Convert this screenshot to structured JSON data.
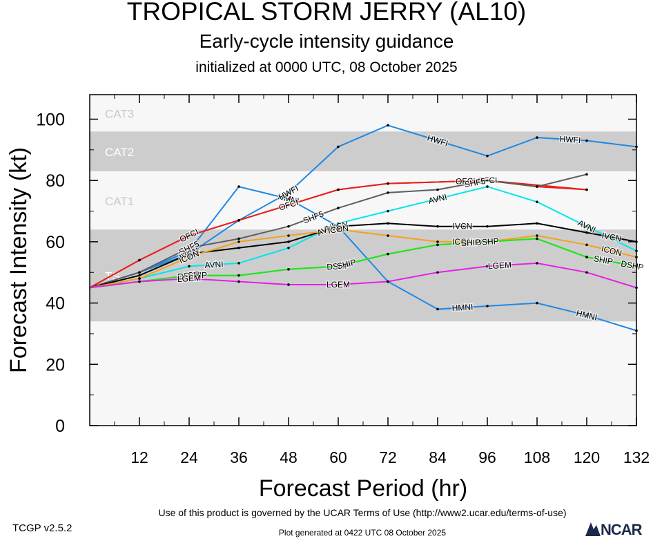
{
  "header": {
    "title": "TROPICAL STORM JERRY (AL10)",
    "subtitle": "Early-cycle intensity guidance",
    "init": "initialized at 0000 UTC, 08 October 2025"
  },
  "footer": {
    "terms": "Use of this product is governed by the UCAR Terms of Use (http://www2.ucar.edu/terms-of-use)",
    "generated": "Plot generated at 0422 UTC   08 October 2025",
    "version": "TCGP v2.5.2",
    "logo_text": "NCAR"
  },
  "chart_data": {
    "type": "line",
    "xlabel": "Forecast Period (hr)",
    "ylabel": "Forecast Intensity (kt)",
    "xlim": [
      0,
      132
    ],
    "ylim": [
      0,
      108
    ],
    "xticks": [
      12,
      24,
      36,
      48,
      60,
      72,
      84,
      96,
      108,
      120,
      132
    ],
    "yticks": [
      0,
      20,
      40,
      60,
      80,
      100
    ],
    "bands": [
      {
        "label": "",
        "from": 0,
        "to": 34,
        "color": "#f7f7f7"
      },
      {
        "label": "TS",
        "from": 34,
        "to": 64,
        "color": "#cdcdcd"
      },
      {
        "label": "CAT1",
        "from": 64,
        "to": 83,
        "color": "#f7f7f7"
      },
      {
        "label": "CAT2",
        "from": 83,
        "to": 96,
        "color": "#cdcdcd"
      },
      {
        "label": "CAT3",
        "from": 96,
        "to": 108,
        "color": "#f7f7f7"
      }
    ],
    "series": [
      {
        "name": "HMNI",
        "color": "#1e88e5",
        "x": [
          0,
          12,
          24,
          36,
          48,
          60,
          72,
          84,
          96,
          108,
          120,
          132
        ],
        "y": [
          45,
          50,
          57,
          78,
          74,
          65,
          47,
          38,
          39,
          40,
          36,
          31
        ],
        "labels_at": [
          24,
          48,
          90,
          120
        ]
      },
      {
        "name": "HWFI",
        "color": "#1e88e5",
        "x": [
          0,
          12,
          24,
          36,
          48,
          60,
          72,
          84,
          96,
          108,
          120,
          132
        ],
        "y": [
          45,
          50,
          56,
          67,
          76,
          91,
          98,
          93,
          88,
          94,
          93,
          91
        ],
        "labels_at": [
          24,
          48,
          84,
          116
        ]
      },
      {
        "name": "OFCI",
        "color": "#e8211c",
        "x": [
          0,
          12,
          24,
          36,
          48,
          60,
          72,
          96,
          120
        ],
        "y": [
          45,
          54,
          62,
          67,
          72,
          77,
          79,
          80,
          77
        ],
        "labels_at": [
          24,
          48,
          96
        ]
      },
      {
        "name": "OFCL",
        "color": "#e8211c",
        "x": [
          0,
          12,
          24,
          36,
          48,
          60,
          72,
          96,
          108,
          120
        ],
        "y": [
          45,
          54,
          62,
          67,
          72,
          77,
          79,
          80,
          78,
          77
        ],
        "labels_at": [
          91
        ]
      },
      {
        "name": "SHF5",
        "color": "#5e5e5e",
        "x": [
          0,
          12,
          24,
          36,
          48,
          60,
          72,
          84,
          96,
          108,
          120
        ],
        "y": [
          45,
          50,
          58,
          61,
          65,
          71,
          76,
          77,
          80,
          78,
          82
        ],
        "labels_at": [
          24,
          54,
          93
        ]
      },
      {
        "name": "AVNI",
        "color": "#00e5ee",
        "x": [
          0,
          12,
          24,
          36,
          48,
          60,
          72,
          84,
          96,
          108,
          120,
          132
        ],
        "y": [
          45,
          48,
          52,
          53,
          58,
          66,
          70,
          74,
          78,
          73,
          65,
          57
        ],
        "labels_at": [
          30,
          57,
          84,
          120
        ]
      },
      {
        "name": "IVCN",
        "color": "#000000",
        "x": [
          0,
          12,
          24,
          36,
          48,
          60,
          72,
          84,
          96,
          108,
          120,
          132
        ],
        "y": [
          45,
          49,
          56,
          58,
          60,
          65,
          66,
          65,
          65,
          66,
          63,
          60
        ],
        "labels_at": [
          24,
          60,
          90,
          126
        ]
      },
      {
        "name": "ICON",
        "color": "#f5a01a",
        "x": [
          0,
          12,
          24,
          36,
          48,
          60,
          72,
          84,
          96,
          108,
          120,
          132
        ],
        "y": [
          45,
          48,
          55,
          60,
          62,
          64,
          62,
          60,
          60,
          62,
          59,
          55
        ],
        "labels_at": [
          24,
          60,
          90,
          126
        ]
      },
      {
        "name": "DSHP",
        "color": "#22e41c",
        "x": [
          0,
          12,
          24,
          36,
          48,
          60,
          72,
          84,
          96,
          108,
          120,
          132
        ],
        "y": [
          45,
          47,
          49,
          49,
          51,
          52,
          56,
          59,
          60,
          61,
          55,
          52
        ],
        "labels_at": [
          24,
          60,
          96,
          131
        ]
      },
      {
        "name": "SHIP",
        "color": "#22e41c",
        "x": [
          0,
          12,
          24,
          36,
          48,
          60,
          72,
          84,
          96,
          108,
          120,
          132
        ],
        "y": [
          45,
          47,
          49,
          49,
          51,
          52,
          56,
          59,
          60,
          61,
          55,
          52
        ],
        "labels_at": [
          26,
          62,
          92,
          124
        ]
      },
      {
        "name": "LGEM",
        "color": "#e81ee8",
        "x": [
          0,
          12,
          24,
          36,
          48,
          60,
          72,
          84,
          96,
          108,
          120,
          132
        ],
        "y": [
          45,
          47,
          48,
          47,
          46,
          46,
          47,
          50,
          52,
          53,
          50,
          45
        ],
        "labels_at": [
          24,
          60,
          99
        ]
      }
    ]
  }
}
